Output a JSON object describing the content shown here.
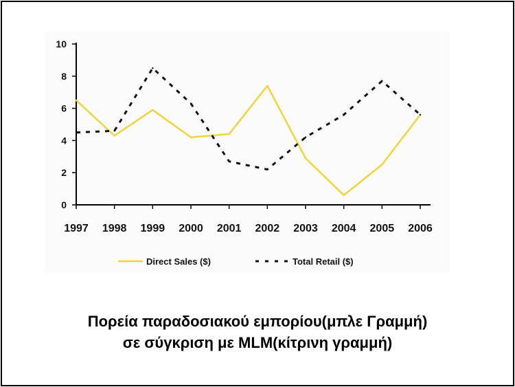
{
  "chart_data": {
    "type": "line",
    "x": [
      "1997",
      "1998",
      "1999",
      "2000",
      "2001",
      "2002",
      "2003",
      "2004",
      "2005",
      "2006"
    ],
    "ylim": [
      0,
      10
    ],
    "yticks": [
      "0",
      "2",
      "4",
      "6",
      "8",
      "10"
    ],
    "grid": false,
    "legend_position": "bottom",
    "series": [
      {
        "name": "Direct Sales ($)",
        "values": [
          6.5,
          4.3,
          5.9,
          4.2,
          4.4,
          7.4,
          2.9,
          0.6,
          2.5,
          5.6
        ],
        "color": "#f4d33a",
        "style": "solid"
      },
      {
        "name": "Total Retail ($)",
        "values": [
          4.5,
          4.6,
          8.5,
          6.3,
          2.7,
          2.2,
          4.2,
          5.6,
          7.7,
          5.6
        ],
        "color": "#111111",
        "style": "dashed"
      }
    ]
  },
  "caption": {
    "line1": "Πορεία παραδοσιακού εμπορίου(μπλε Γραμμή)",
    "line2": "σε σύγκριση με MLM(κίτρινη γραμμή)"
  }
}
